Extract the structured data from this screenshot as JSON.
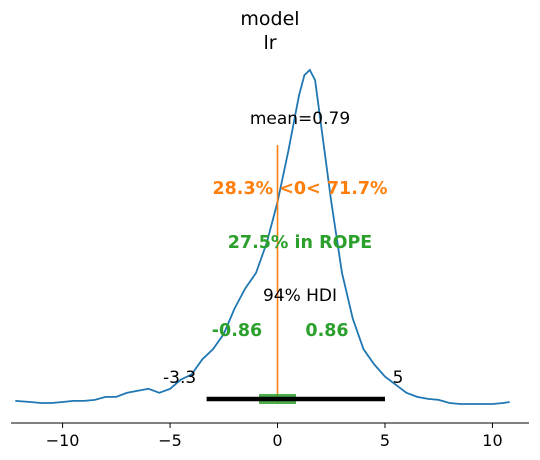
{
  "chart_data": {
    "type": "area",
    "title": "model",
    "subtitle": "lr",
    "xlim": [
      -12.4,
      11.7
    ],
    "x_ticks": [
      -10,
      -5,
      0,
      5,
      10
    ],
    "x_tick_labels": [
      "−10",
      "−5",
      "0",
      "5",
      "10"
    ],
    "grid": false,
    "density": {
      "x": [
        -12.2,
        -11.5,
        -11,
        -10.5,
        -10,
        -9.5,
        -9,
        -8.5,
        -8,
        -7.5,
        -7,
        -6.5,
        -6,
        -5.5,
        -5,
        -4.5,
        -4,
        -3.5,
        -3,
        -2.5,
        -2,
        -1.5,
        -1,
        -0.5,
        0,
        0.5,
        1,
        1.25,
        1.5,
        1.75,
        2,
        2.5,
        3,
        3.5,
        4,
        4.5,
        5,
        5.5,
        6,
        6.5,
        7,
        7.5,
        8,
        8.5,
        9,
        9.5,
        10,
        10.5,
        10.8
      ],
      "y": [
        0.004,
        0.003,
        0.002,
        0.002,
        0.003,
        0.004,
        0.004,
        0.005,
        0.008,
        0.008,
        0.012,
        0.014,
        0.016,
        0.012,
        0.016,
        0.025,
        0.03,
        0.045,
        0.055,
        0.07,
        0.095,
        0.115,
        0.13,
        0.16,
        0.2,
        0.25,
        0.305,
        0.325,
        0.33,
        0.32,
        0.28,
        0.2,
        0.13,
        0.085,
        0.055,
        0.04,
        0.028,
        0.02,
        0.012,
        0.008,
        0.006,
        0.005,
        0.002,
        0.001,
        0.001,
        0.001,
        0.001,
        0.002,
        0.003
      ],
      "color": "#1f77b4"
    },
    "mean_label": "mean=0.79",
    "reference_line": {
      "value": 0,
      "color": "#ff7f0e"
    },
    "reference_text": "28.3% <0< 71.7%",
    "rope": {
      "low": -0.86,
      "high": 0.86,
      "color": "#2ca02c",
      "label": "27.5% in ROPE",
      "low_label": "-0.86",
      "high_label": "0.86"
    },
    "hdi": {
      "prob_label": "94% HDI",
      "low": -3.3,
      "high": 5,
      "low_label": "-3.3",
      "high_label": "5",
      "color": "#000000"
    }
  }
}
